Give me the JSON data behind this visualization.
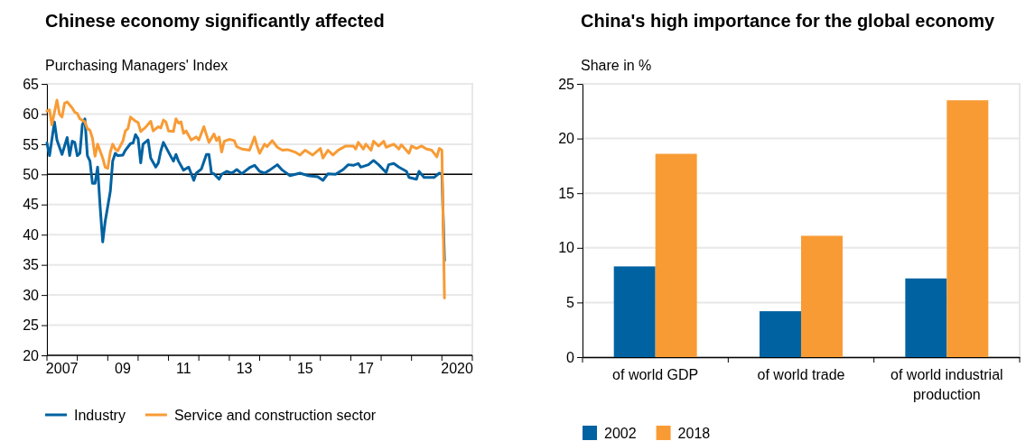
{
  "chart_data": [
    {
      "type": "line",
      "title": "Chinese economy significantly affected",
      "ylabel": "Purchasing Managers' Index",
      "xlim": [
        "2007-01",
        "2021-01"
      ],
      "xticks": [
        {
          "value": "2007-01",
          "label": null
        },
        {
          "value": "2007-07",
          "label": "2007"
        },
        {
          "value": "2008-01",
          "label": null
        },
        {
          "value": "2009-01",
          "label": null
        },
        {
          "value": "2009-07",
          "label": "09"
        },
        {
          "value": "2010-01",
          "label": null
        },
        {
          "value": "2011-01",
          "label": null
        },
        {
          "value": "2011-07",
          "label": "11"
        },
        {
          "value": "2012-01",
          "label": null
        },
        {
          "value": "2013-01",
          "label": null
        },
        {
          "value": "2013-07",
          "label": "13"
        },
        {
          "value": "2014-01",
          "label": null
        },
        {
          "value": "2015-01",
          "label": null
        },
        {
          "value": "2015-07",
          "label": "15"
        },
        {
          "value": "2016-01",
          "label": null
        },
        {
          "value": "2017-01",
          "label": null
        },
        {
          "value": "2017-07",
          "label": "17"
        },
        {
          "value": "2018-01",
          "label": null
        },
        {
          "value": "2019-01",
          "label": null
        },
        {
          "value": "2020-01",
          "label": null
        },
        {
          "value": "2020-07",
          "label": "2020"
        },
        {
          "value": "2021-01",
          "label": null
        }
      ],
      "ylim": [
        20,
        65
      ],
      "yticks": [
        20,
        25,
        30,
        35,
        40,
        45,
        50,
        55,
        60,
        65
      ],
      "grid": "y",
      "legend": "bottom",
      "ref_lines": [
        {
          "axis": "y",
          "value": 50,
          "color": "#000000"
        }
      ],
      "series": [
        {
          "name": "Industry",
          "color": "#0062a1",
          "x": [
            "2007-01",
            "2007-02",
            "2007-04",
            "2007-05",
            "2007-07",
            "2007-09",
            "2007-10",
            "2007-11",
            "2007-12",
            "2008-01",
            "2008-02",
            "2008-03",
            "2008-04",
            "2008-05",
            "2008-06",
            "2008-07",
            "2008-08",
            "2008-09",
            "2008-10",
            "2008-11",
            "2008-12",
            "2009-02",
            "2009-03",
            "2009-04",
            "2009-05",
            "2009-07",
            "2009-08",
            "2009-10",
            "2009-11",
            "2009-12",
            "2010-01",
            "2010-02",
            "2010-03",
            "2010-05",
            "2010-06",
            "2010-08",
            "2010-09",
            "2010-10",
            "2010-11",
            "2011-01",
            "2011-03",
            "2011-04",
            "2011-05",
            "2011-07",
            "2011-09",
            "2011-11",
            "2011-12",
            "2012-02",
            "2012-04",
            "2012-05",
            "2012-06",
            "2012-07",
            "2012-09",
            "2012-10",
            "2012-12",
            "2013-02",
            "2013-04",
            "2013-06",
            "2013-09",
            "2013-11",
            "2014-01",
            "2014-03",
            "2014-05",
            "2014-08",
            "2014-10",
            "2015-01",
            "2015-05",
            "2015-08",
            "2015-12",
            "2016-02",
            "2016-04",
            "2016-07",
            "2016-10",
            "2016-12",
            "2017-02",
            "2017-04",
            "2017-05",
            "2017-08",
            "2017-10",
            "2017-12",
            "2018-03",
            "2018-04",
            "2018-06",
            "2018-08",
            "2018-11",
            "2018-12",
            "2019-03",
            "2019-04",
            "2019-06",
            "2019-08",
            "2019-10",
            "2019-12",
            "2020-01",
            "2020-02"
          ],
          "values": [
            55.2,
            53.1,
            58.7,
            55.7,
            53.3,
            56.1,
            53.1,
            55.5,
            55.3,
            53.1,
            53.5,
            58.2,
            59.2,
            53.1,
            52.2,
            48.5,
            48.5,
            51.2,
            44.7,
            38.8,
            42.2,
            47.2,
            52.2,
            53.5,
            53.1,
            53.2,
            54,
            55.1,
            55.2,
            56.6,
            55.9,
            51.9,
            55,
            55.7,
            52.7,
            51.2,
            51.9,
            53.9,
            55.3,
            53.7,
            52.2,
            53.3,
            52.2,
            50.7,
            51.2,
            49,
            50.2,
            50.9,
            53.3,
            53.3,
            50.2,
            50.1,
            49.2,
            50,
            50.5,
            50.2,
            50.8,
            50.1,
            51.1,
            51.5,
            50.5,
            50.2,
            50.7,
            51.6,
            50.7,
            49.8,
            50.2,
            49.8,
            49.6,
            49,
            50.1,
            50,
            50.8,
            51.6,
            51.5,
            51.8,
            51.2,
            51.6,
            52.3,
            51.6,
            50.3,
            51.6,
            51.8,
            51.2,
            50.5,
            49.5,
            49.2,
            50.5,
            49.5,
            49.5,
            49.5,
            50.2,
            50.1,
            35.7
          ]
        },
        {
          "name": "Service and construction sector",
          "color": "#f89b35",
          "x": [
            "2007-01",
            "2007-02",
            "2007-03",
            "2007-05",
            "2007-06",
            "2007-07",
            "2007-08",
            "2007-09",
            "2007-11",
            "2007-12",
            "2008-01",
            "2008-02",
            "2008-04",
            "2008-05",
            "2008-06",
            "2008-07",
            "2008-08",
            "2008-09",
            "2008-11",
            "2008-12",
            "2009-01",
            "2009-02",
            "2009-03",
            "2009-04",
            "2009-05",
            "2009-07",
            "2009-08",
            "2009-09",
            "2009-10",
            "2009-12",
            "2010-01",
            "2010-02",
            "2010-04",
            "2010-05",
            "2010-06",
            "2010-07",
            "2010-09",
            "2010-10",
            "2010-11",
            "2010-12",
            "2011-01",
            "2011-03",
            "2011-04",
            "2011-05",
            "2011-06",
            "2011-07",
            "2011-08",
            "2011-10",
            "2011-12",
            "2012-01",
            "2012-03",
            "2012-05",
            "2012-07",
            "2012-08",
            "2012-09",
            "2012-10",
            "2012-11",
            "2013-01",
            "2013-03",
            "2013-04",
            "2013-06",
            "2013-09",
            "2013-11",
            "2013-12",
            "2014-01",
            "2014-03",
            "2014-04",
            "2014-06",
            "2014-08",
            "2014-10",
            "2014-12",
            "2015-03",
            "2015-05",
            "2015-07",
            "2015-10",
            "2016-01",
            "2016-02",
            "2016-04",
            "2016-06",
            "2016-08",
            "2016-11",
            "2017-02",
            "2017-03",
            "2017-04",
            "2017-06",
            "2017-07",
            "2017-09",
            "2017-10",
            "2017-12",
            "2018-02",
            "2018-03",
            "2018-06",
            "2018-08",
            "2018-09",
            "2018-12",
            "2019-01",
            "2019-03",
            "2019-05",
            "2019-07",
            "2019-09",
            "2019-11",
            "2019-12",
            "2020-01",
            "2020-02"
          ],
          "values": [
            60.5,
            60.7,
            58.2,
            62.3,
            60,
            59.5,
            61.8,
            62,
            61,
            60.3,
            60.1,
            59.2,
            58.7,
            57.6,
            57.3,
            56,
            53,
            55,
            52.7,
            51.2,
            51,
            53.7,
            55,
            54.2,
            53.9,
            55.5,
            57.2,
            57.6,
            59.5,
            58.8,
            58.6,
            57.1,
            57.8,
            58.3,
            58.8,
            57.2,
            57.9,
            57.7,
            59,
            58.7,
            57.2,
            57.1,
            59.2,
            58.5,
            58.7,
            56.8,
            57.2,
            55.7,
            56.2,
            55.7,
            57.9,
            55.3,
            56.7,
            55.6,
            56.2,
            53.7,
            55.5,
            55.8,
            55.6,
            54.6,
            54.2,
            54,
            56.2,
            54.7,
            53.5,
            55,
            54.6,
            55.6,
            54.5,
            54,
            54.1,
            53.7,
            53.2,
            54,
            53.2,
            54.3,
            52.7,
            54,
            53.2,
            54,
            54.7,
            54.7,
            54.2,
            55.3,
            54.2,
            55,
            54,
            55.5,
            54.7,
            55.5,
            54.5,
            55,
            54.2,
            54.9,
            53.5,
            54.7,
            54.3,
            54.7,
            54.2,
            54,
            52.9,
            54.3,
            54,
            29.5
          ]
        }
      ]
    },
    {
      "type": "bar",
      "title": "China's high importance for the global economy",
      "ylabel": "Share in %",
      "categories": [
        "of world GDP",
        "of world trade",
        "of world industrial production"
      ],
      "ylim": [
        0,
        25
      ],
      "yticks": [
        0,
        5,
        10,
        15,
        20,
        25
      ],
      "grid": "y",
      "legend": "bottom left",
      "series": [
        {
          "name": "2002",
          "color": "#0062a1",
          "values": [
            8.3,
            4.2,
            7.2
          ]
        },
        {
          "name": "2018",
          "color": "#f89b35",
          "values": [
            18.6,
            11.1,
            23.5
          ]
        }
      ]
    }
  ]
}
